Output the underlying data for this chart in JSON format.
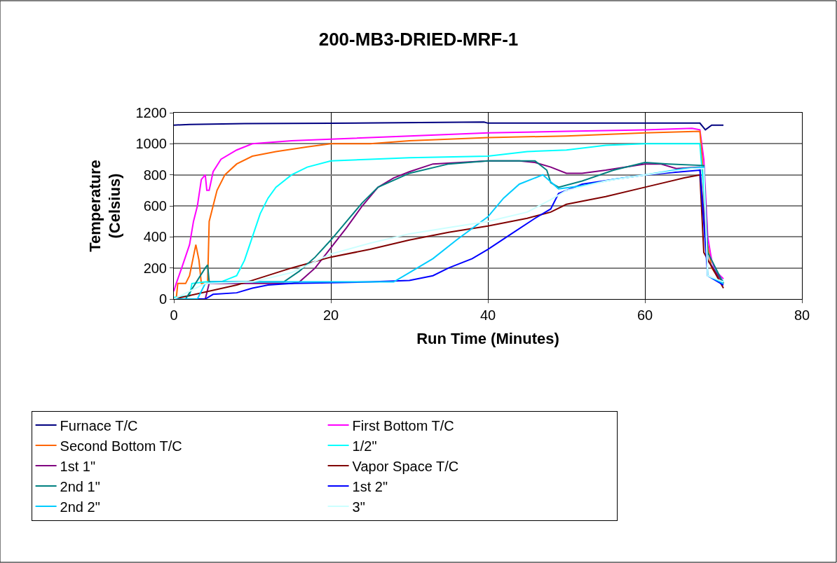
{
  "chart_data": {
    "type": "line",
    "title": "200-MB3-DRIED-MRF-1",
    "xlabel": "Run Time (Minutes)",
    "ylabel": "Temperature\n(Celsius)",
    "xlim": [
      0,
      80
    ],
    "ylim": [
      0,
      1200
    ],
    "xticks": [
      0,
      20,
      40,
      60,
      80
    ],
    "yticks": [
      0,
      200,
      400,
      600,
      800,
      1000,
      1200
    ],
    "grid": true,
    "legend": "bottom",
    "marker": "none",
    "line_style": "solid",
    "series": [
      {
        "name": "Furnace T/C",
        "color": "#000080",
        "x": [
          0,
          2,
          9,
          20,
          39.5,
          40,
          67,
          67.7,
          68.5,
          70
        ],
        "values": [
          1120,
          1125,
          1130,
          1132,
          1140,
          1133,
          1133,
          1090,
          1120,
          1120
        ]
      },
      {
        "name": "First Bottom T/C",
        "color": "#ff00ff",
        "x": [
          0,
          0.3,
          1,
          2,
          2.5,
          3,
          3.5,
          4,
          4.2,
          4.5,
          5,
          6,
          8,
          10,
          15,
          20,
          30,
          40,
          50,
          60,
          66,
          67,
          67.5,
          68,
          68.5,
          69,
          70
        ],
        "values": [
          50,
          100,
          200,
          350,
          500,
          600,
          770,
          800,
          700,
          700,
          820,
          900,
          960,
          1000,
          1020,
          1030,
          1050,
          1070,
          1080,
          1090,
          1100,
          1090,
          900,
          400,
          250,
          180,
          130
        ]
      },
      {
        "name": "Second Bottom T/C",
        "color": "#ff6600",
        "x": [
          0.3,
          0.5,
          1.5,
          2,
          2.8,
          3.2,
          3.5,
          4.3,
          4.5,
          5,
          5.5,
          6.5,
          8,
          10,
          13,
          17,
          20,
          25,
          30,
          40,
          50,
          60,
          67,
          67.3,
          67.8,
          68.5,
          70
        ],
        "values": [
          0,
          100,
          100,
          150,
          350,
          250,
          100,
          100,
          500,
          600,
          700,
          800,
          870,
          920,
          950,
          980,
          1000,
          1000,
          1020,
          1040,
          1050,
          1070,
          1080,
          900,
          400,
          200,
          100
        ]
      },
      {
        "name": "1/2\"",
        "color": "#00ffff",
        "x": [
          0,
          2,
          2.3,
          4,
          6,
          8,
          9,
          10,
          11,
          12,
          13,
          15,
          17,
          20,
          25,
          30,
          40,
          45,
          50,
          55,
          60,
          67,
          67.5,
          68,
          70
        ],
        "values": [
          10,
          20,
          100,
          110,
          110,
          150,
          250,
          400,
          550,
          650,
          720,
          800,
          850,
          890,
          900,
          910,
          920,
          950,
          960,
          990,
          1000,
          1000,
          700,
          250,
          110
        ]
      },
      {
        "name": "1st 1\"",
        "color": "#800080",
        "x": [
          0,
          4,
          4.5,
          15,
          16,
          18,
          20,
          22,
          24,
          26,
          28,
          30,
          33,
          40,
          44,
          46,
          48,
          50,
          52,
          55,
          60,
          62,
          64,
          67,
          68,
          70
        ],
        "values": [
          0,
          0,
          100,
          100,
          110,
          200,
          330,
          460,
          600,
          720,
          780,
          820,
          870,
          890,
          890,
          880,
          850,
          810,
          810,
          830,
          870,
          870,
          840,
          850,
          250,
          100
        ]
      },
      {
        "name": "Vapor Space T/C",
        "color": "#800000",
        "x": [
          0,
          8,
          10,
          15,
          20,
          25,
          30,
          35,
          40,
          45,
          48,
          50,
          55,
          60,
          65,
          67,
          67.2,
          67.5,
          70
        ],
        "values": [
          0,
          90,
          120,
          200,
          270,
          320,
          380,
          430,
          470,
          520,
          560,
          610,
          660,
          720,
          780,
          800,
          600,
          300,
          70
        ]
      },
      {
        "name": "2nd 1\"",
        "color": "#008080",
        "x": [
          0,
          1.5,
          4,
          4.3,
          4.5,
          14,
          16,
          18,
          20,
          22,
          24,
          26,
          30,
          35,
          40,
          46,
          47.5,
          48,
          49,
          52,
          56,
          60,
          63,
          67.5,
          68,
          70
        ],
        "values": [
          0,
          0,
          200,
          220,
          110,
          110,
          180,
          270,
          380,
          500,
          620,
          720,
          810,
          870,
          890,
          890,
          830,
          750,
          720,
          760,
          830,
          880,
          870,
          860,
          300,
          100
        ]
      },
      {
        "name": "1st 2\"",
        "color": "#0000ff",
        "x": [
          0,
          4,
          5,
          8,
          10,
          12,
          15,
          20,
          25,
          30,
          33,
          35,
          38,
          40,
          43,
          46,
          48,
          49,
          52,
          60,
          67,
          68,
          70
        ],
        "values": [
          0,
          0,
          30,
          40,
          70,
          90,
          100,
          105,
          110,
          120,
          150,
          200,
          260,
          320,
          420,
          520,
          580,
          680,
          740,
          800,
          830,
          150,
          90
        ]
      },
      {
        "name": "2nd 2\"",
        "color": "#00ccff",
        "x": [
          0,
          3,
          4,
          5,
          28,
          30,
          33,
          36,
          40,
          42,
          44,
          47,
          49,
          52,
          56,
          60,
          65,
          67.5,
          68,
          70
        ],
        "values": [
          0,
          0,
          100,
          110,
          110,
          170,
          260,
          380,
          530,
          650,
          740,
          800,
          710,
          730,
          770,
          800,
          840,
          850,
          150,
          100
        ]
      },
      {
        "name": "3\"",
        "color": "#ccffff",
        "x": [
          0,
          2,
          4,
          10,
          15,
          20,
          25,
          30,
          35,
          40,
          45,
          48,
          50,
          55,
          60,
          66,
          67.5,
          68,
          70
        ],
        "values": [
          0,
          50,
          100,
          110,
          170,
          290,
          360,
          420,
          460,
          500,
          560,
          640,
          700,
          760,
          800,
          840,
          840,
          150,
          110
        ]
      }
    ]
  }
}
